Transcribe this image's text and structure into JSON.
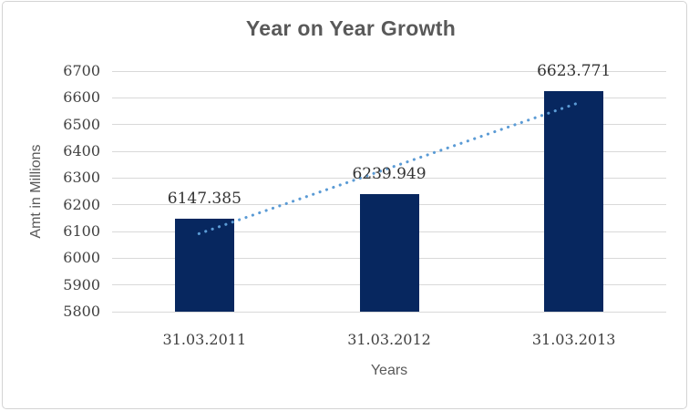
{
  "chart_data": {
    "type": "bar",
    "title": "Year on Year Growth",
    "categories": [
      "31.03.2011",
      "31.03.2012",
      "31.03.2013"
    ],
    "values": [
      6147.385,
      6239.949,
      6623.771
    ],
    "data_labels": [
      "6147.385",
      "6239.949",
      "6623.771"
    ],
    "xlabel": "Years",
    "ylabel": "Amt in Millions",
    "ylim": [
      5800,
      6700
    ],
    "ytick_step": 100,
    "y_ticks": [
      "6700",
      "6600",
      "6500",
      "6400",
      "6300",
      "6200",
      "6100",
      "6000",
      "5900",
      "5800"
    ],
    "grid": true,
    "legend": "none",
    "trendline": {
      "type": "linear",
      "style": "dotted"
    },
    "colors": {
      "bar": "#07275F",
      "trendline": "#5B9BD5",
      "gridline": "#D9D9D9",
      "title_text": "#595959",
      "axis_text": "#404040",
      "frame_border": "#D4D4D4"
    }
  }
}
